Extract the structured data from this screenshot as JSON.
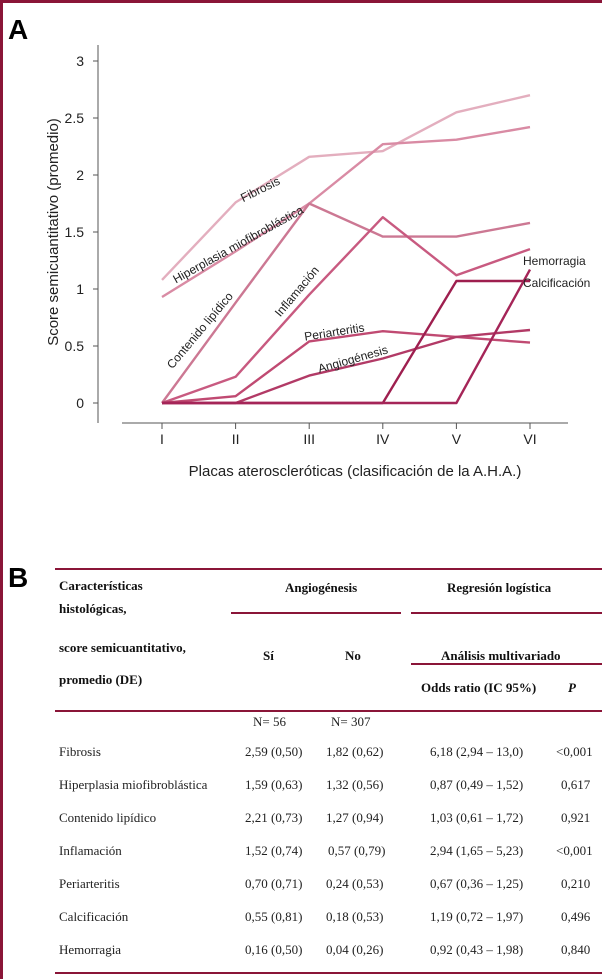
{
  "panel_a_letter": "A",
  "panel_b_letter": "B",
  "chart_data": {
    "type": "line",
    "ylabel": "Score semicuantitativo  (promedio)",
    "xlabel": "Placas ateroscleróticas (clasificación de la A.H.A.)",
    "categories": [
      "I",
      "II",
      "III",
      "IV",
      "V",
      "VI"
    ],
    "y_ticks": [
      "0",
      "0.5",
      "1",
      "1.5",
      "2",
      "2.5",
      "3"
    ],
    "ylim": [
      0,
      3
    ],
    "grid": false,
    "series": [
      {
        "name": "Fibrosis",
        "values": [
          1.08,
          1.76,
          2.16,
          2.21,
          2.55,
          2.7
        ],
        "color": "#e3aebe"
      },
      {
        "name": "Hiperplasia miofibroblástica",
        "values": [
          0.93,
          1.33,
          1.75,
          2.27,
          2.31,
          2.42
        ],
        "color": "#d98ba4"
      },
      {
        "name": "Contenido lipídico",
        "values": [
          0.0,
          0.88,
          1.75,
          1.46,
          1.46,
          1.58
        ],
        "color": "#cc7893"
      },
      {
        "name": "Inflamación",
        "values": [
          0.0,
          0.23,
          0.95,
          1.63,
          1.12,
          1.35
        ],
        "color": "#c85a80"
      },
      {
        "name": "Periarteritis",
        "values": [
          0.0,
          0.06,
          0.54,
          0.63,
          0.58,
          0.53
        ],
        "color": "#c04a72"
      },
      {
        "name": "Angiogénesis",
        "values": [
          0.0,
          0.0,
          0.24,
          0.39,
          0.58,
          0.64
        ],
        "color": "#b23a66"
      },
      {
        "name": "Calcificación",
        "values": [
          0.0,
          0.0,
          0.0,
          0.0,
          1.07,
          1.07
        ],
        "color": "#9e1f4f"
      },
      {
        "name": "Hemorragia",
        "values": [
          0.0,
          0.0,
          0.0,
          0.0,
          0.0,
          1.17
        ],
        "color": "#a52558"
      }
    ]
  },
  "table": {
    "header": {
      "col1_lines": [
        "Características",
        "histológicas,",
        "score semicuantitativo,",
        "promedio (DE)"
      ],
      "angiogenesis": "Angiogénesis",
      "regresion": "Regresión logística",
      "si": "Sí",
      "no": "No",
      "multivariado": "Análisis multivariado",
      "odds": "Odds ratio (IC 95%)",
      "p": "P"
    },
    "n_si": "N= 56",
    "n_no": "N= 307",
    "rows": [
      {
        "name": "Fibrosis",
        "si": "2,59 (0,50)",
        "no": "1,82 (0,62)",
        "odds": "6,18 (2,94 – 13,0)",
        "p": "<0,001"
      },
      {
        "name": "Hiperplasia miofibroblástica",
        "si": "1,59 (0,63)",
        "no": "1,32 (0,56)",
        "odds": "0,87 (0,49 – 1,52)",
        "p": "0,617"
      },
      {
        "name": "Contenido lipídico",
        "si": "2,21 (0,73)",
        "no": "1,27 (0,94)",
        "odds": "1,03 (0,61 – 1,72)",
        "p": "0,921"
      },
      {
        "name": "Inflamación",
        "si": "1,52 (0,74)",
        "no": "0,57 (0,79)",
        "odds": "2,94 (1,65 – 5,23)",
        "p": "<0,001"
      },
      {
        "name": "Periarteritis",
        "si": "0,70 (0,71)",
        "no": "0,24 (0,53)",
        "odds": "0,67 (0,36 – 1,25)",
        "p": "0,210"
      },
      {
        "name": "Calcificación",
        "si": "0,55 (0,81)",
        "no": "0,18 (0,53)",
        "odds": "1,19 (0,72 – 1,97)",
        "p": "0,496"
      },
      {
        "name": "Hemorragia",
        "si": "0,16 (0,50)",
        "no": "0,04 (0,26)",
        "odds": "0,92 (0,43 – 1,98)",
        "p": "0,840"
      }
    ]
  }
}
